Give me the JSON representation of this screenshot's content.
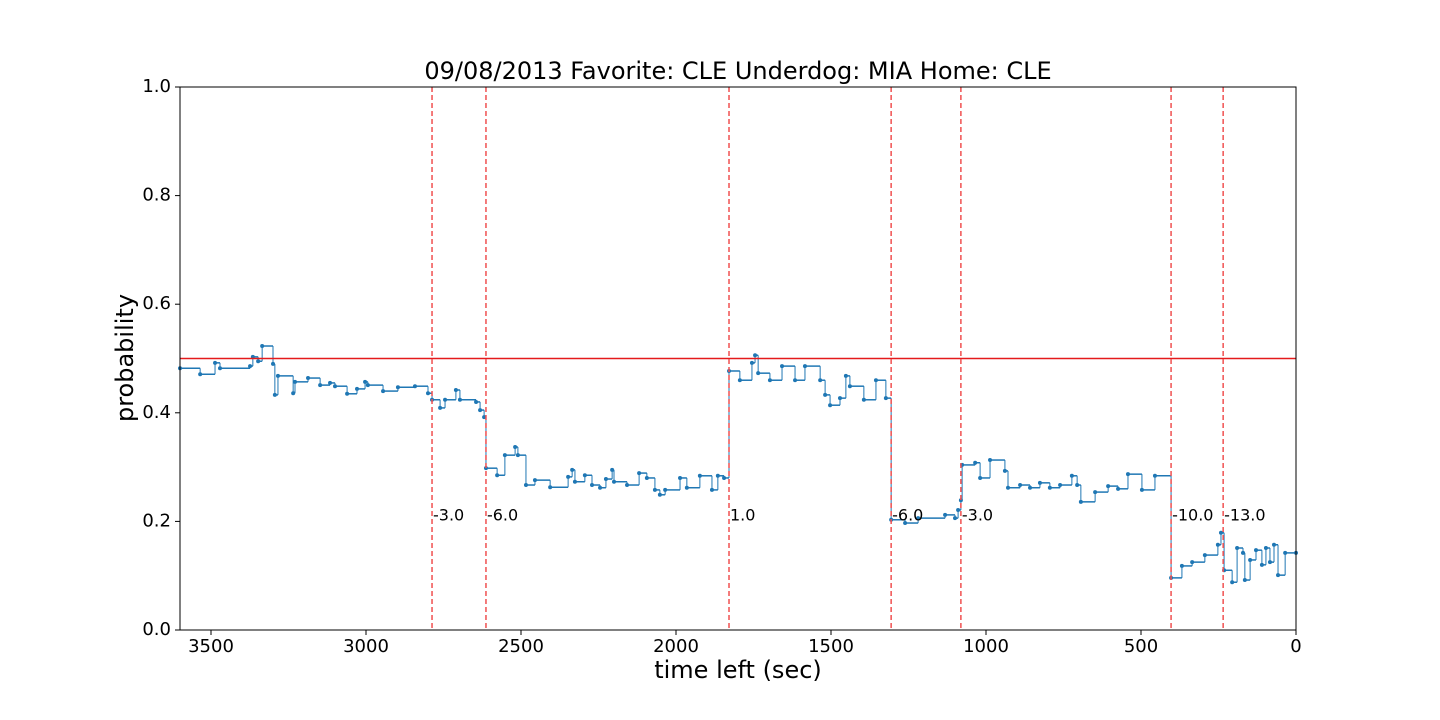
{
  "chart_data": {
    "type": "step",
    "title": "09/08/2013 Favorite: CLE Underdog: MIA Home: CLE",
    "x_label": "time left (sec)",
    "y_label": "probability",
    "xlim": [
      3600,
      0
    ],
    "ylim": [
      0,
      1
    ],
    "xticks": [
      3500,
      3000,
      2500,
      2000,
      1500,
      1000,
      500,
      0
    ],
    "yticks": [
      {
        "value": 0,
        "label": "0.0"
      },
      {
        "value": 0.2,
        "label": "0.2"
      },
      {
        "value": 0.4,
        "label": "0.4"
      },
      {
        "value": 0.6,
        "label": "0.6"
      },
      {
        "value": 0.8,
        "label": "0.8"
      },
      {
        "value": 1,
        "label": "1.0"
      }
    ],
    "series": [
      {
        "color": "#1f77b4",
        "x": [
          3600,
          3535,
          3487,
          3471,
          3374,
          3365,
          3348,
          3335,
          3300,
          3294,
          3284,
          3235,
          3229,
          3187,
          3148,
          3116,
          3100,
          3061,
          3029,
          3003,
          2994,
          2945,
          2897,
          2842,
          2800,
          2787,
          2761,
          2745,
          2710,
          2697,
          2645,
          2632,
          2619,
          2613,
          2577,
          2552,
          2519,
          2510,
          2484,
          2455,
          2406,
          2348,
          2335,
          2326,
          2294,
          2271,
          2245,
          2226,
          2206,
          2200,
          2158,
          2119,
          2094,
          2068,
          2052,
          2035,
          1987,
          1965,
          1923,
          1884,
          1865,
          1845,
          1829,
          1794,
          1755,
          1745,
          1735,
          1697,
          1658,
          1616,
          1584,
          1535,
          1519,
          1503,
          1471,
          1452,
          1439,
          1394,
          1355,
          1323,
          1306,
          1261,
          1219,
          1132,
          1100,
          1090,
          1081,
          1077,
          1035,
          1019,
          987,
          939,
          929,
          890,
          858,
          826,
          794,
          761,
          723,
          706,
          694,
          648,
          606,
          574,
          542,
          497,
          455,
          403,
          368,
          335,
          294,
          252,
          242,
          232,
          206,
          190,
          171,
          165,
          148,
          129,
          110,
          97,
          84,
          71,
          58,
          35,
          0
        ],
        "values": [
          0.482,
          0.471,
          0.492,
          0.482,
          0.486,
          0.503,
          0.495,
          0.523,
          0.49,
          0.433,
          0.468,
          0.436,
          0.457,
          0.464,
          0.451,
          0.455,
          0.449,
          0.435,
          0.444,
          0.457,
          0.451,
          0.44,
          0.447,
          0.449,
          0.436,
          0.424,
          0.409,
          0.424,
          0.442,
          0.424,
          0.42,
          0.405,
          0.392,
          0.298,
          0.285,
          0.322,
          0.337,
          0.322,
          0.267,
          0.276,
          0.263,
          0.282,
          0.295,
          0.273,
          0.285,
          0.267,
          0.262,
          0.278,
          0.295,
          0.273,
          0.267,
          0.289,
          0.28,
          0.258,
          0.249,
          0.258,
          0.28,
          0.262,
          0.284,
          0.258,
          0.284,
          0.28,
          0.477,
          0.46,
          0.492,
          0.506,
          0.473,
          0.46,
          0.486,
          0.46,
          0.486,
          0.46,
          0.433,
          0.414,
          0.427,
          0.468,
          0.449,
          0.424,
          0.46,
          0.427,
          0.203,
          0.197,
          0.206,
          0.212,
          0.206,
          0.221,
          0.239,
          0.304,
          0.308,
          0.28,
          0.313,
          0.293,
          0.262,
          0.267,
          0.262,
          0.271,
          0.262,
          0.267,
          0.284,
          0.267,
          0.236,
          0.254,
          0.265,
          0.26,
          0.287,
          0.258,
          0.284,
          0.096,
          0.118,
          0.125,
          0.138,
          0.157,
          0.179,
          0.11,
          0.088,
          0.151,
          0.142,
          0.092,
          0.129,
          0.147,
          0.12,
          0.151,
          0.125,
          0.157,
          0.101,
          0.142,
          0.142
        ]
      }
    ],
    "hline": {
      "value": 0.5,
      "color": "#e41a1c"
    },
    "events": [
      {
        "x": 2787,
        "label": "-3.0"
      },
      {
        "x": 2613,
        "label": "-6.0"
      },
      {
        "x": 1829,
        "label": "1.0"
      },
      {
        "x": 1306,
        "label": "-6.0"
      },
      {
        "x": 1081,
        "label": "-3.0"
      },
      {
        "x": 403,
        "label": "-10.0"
      },
      {
        "x": 235,
        "label": "-13.0"
      }
    ],
    "event_color": "#f05050"
  }
}
